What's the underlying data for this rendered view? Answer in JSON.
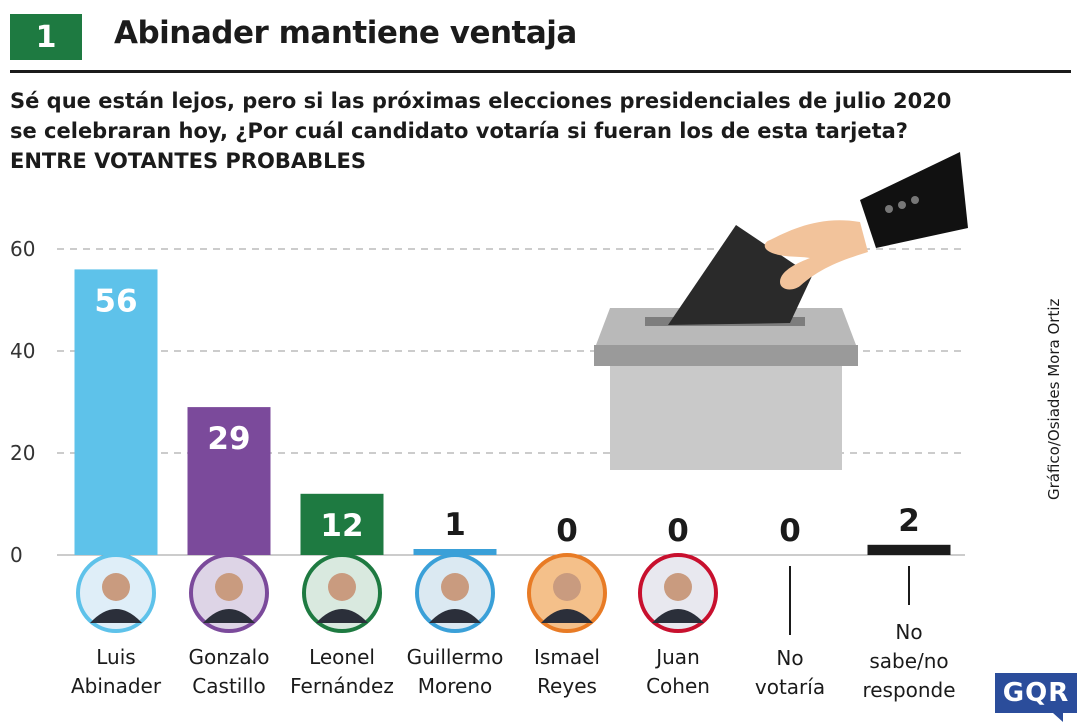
{
  "header": {
    "number": "1",
    "title": "Abinader mantiene ventaja"
  },
  "question": {
    "line1": "Sé que están lejos, pero si las próximas elecciones presidenciales de julio 2020",
    "line2": "se celebraran hoy, ¿Por cuál candidato votaría si fueran los de esta tarjeta?",
    "line3": "ENTRE VOTANTES PROBABLES"
  },
  "credit": "Gráfico/Osiades Mora Ortiz",
  "logo": "GQR",
  "chart_data": {
    "type": "bar",
    "categories": [
      [
        "Luis",
        "Abinader"
      ],
      [
        "Gonzalo",
        "Castillo"
      ],
      [
        "Leonel",
        "Fernández"
      ],
      [
        "Guillermo",
        "Moreno"
      ],
      [
        "Ismael",
        "Reyes"
      ],
      [
        "Juan",
        "Cohen"
      ],
      [
        "No",
        "votaría"
      ],
      [
        "No",
        "sabe/no",
        "responde"
      ]
    ],
    "values": [
      56,
      29,
      12,
      1,
      0,
      0,
      0,
      2
    ],
    "data_labels": [
      "56",
      "29",
      "12",
      "1",
      "0",
      "0",
      "0",
      "2"
    ],
    "colors": [
      "#5ec2ea",
      "#7b4a9b",
      "#1e7a41",
      "#3aa0d8",
      "#e87b25",
      "#c8102e",
      "#1b1b1b",
      "#1b1b1b"
    ],
    "ylim": [
      0,
      60
    ],
    "yticks": [
      "0",
      "20",
      "40",
      "60"
    ],
    "grid": true
  }
}
